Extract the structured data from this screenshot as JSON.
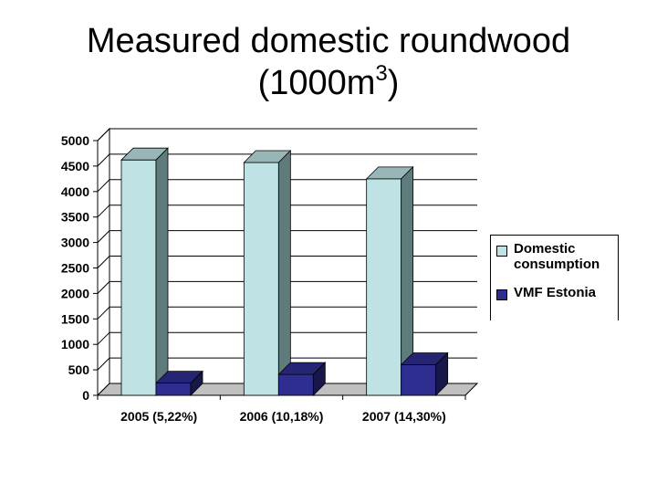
{
  "title": {
    "main": "Measured domestic roundwood",
    "sub_prefix": "(1000m",
    "sub_sup": "3",
    "sub_suffix": ")"
  },
  "chart_data": {
    "type": "bar",
    "title": "Measured domestic roundwood (1000m3)",
    "categories": [
      "2005 (5,22%)",
      "2006 (10,18%)",
      "2007 (14,30%)"
    ],
    "series": [
      {
        "name": "Domestic consumption",
        "values": [
          4620,
          4570,
          4250
        ],
        "color": "#bfe3e4"
      },
      {
        "name": "VMF Estonia",
        "values": [
          240,
          410,
          600
        ],
        "color": "#2e2e91"
      }
    ],
    "yticks": [
      "0",
      "500",
      "1000",
      "1500",
      "2000",
      "2500",
      "3000",
      "3500",
      "4000",
      "4500",
      "5000"
    ],
    "ylim": [
      0,
      5000
    ],
    "grid": true,
    "legend_position": "right",
    "chart_type_detail": "3d-clustered-column"
  },
  "legend": {
    "items": [
      {
        "line1": "Domestic",
        "line2": "consumption",
        "color": "#bfe3e4"
      },
      {
        "line1": "VMF Estonia",
        "line2": "",
        "color": "#2e2e91"
      }
    ]
  }
}
